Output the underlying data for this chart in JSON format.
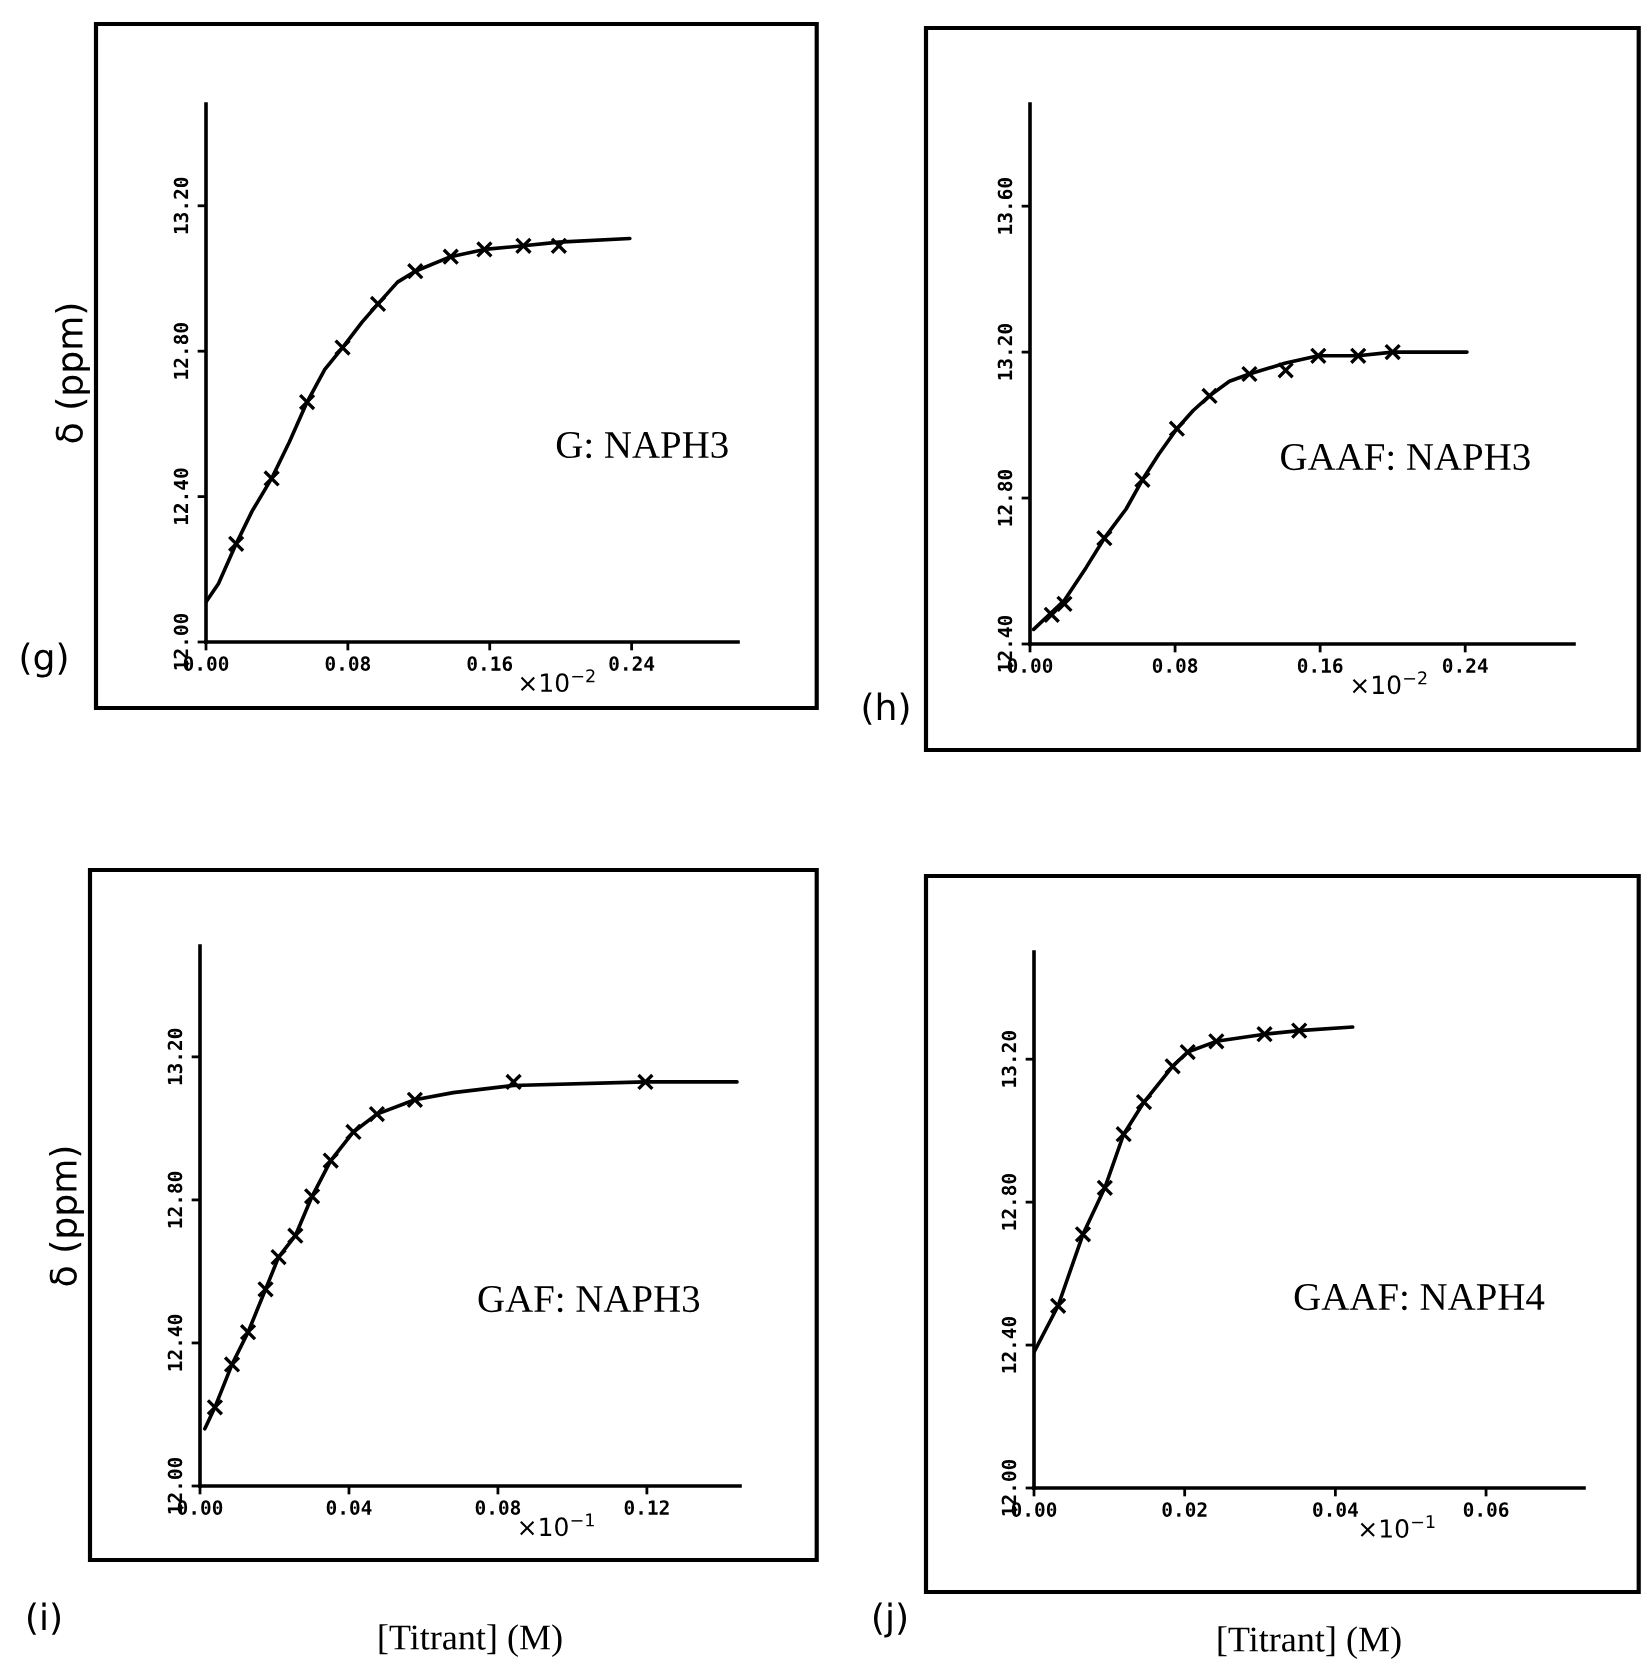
{
  "chart_data": [
    {
      "type": "line",
      "ylabel": "δ (ppm)",
      "annotations": [
        "G: NAPH3",
        "×10$^{−2}$",
        "(g)"
      ],
      "xlim": [
        0,
        0.3
      ],
      "ylim": [
        12.0,
        13.48
      ],
      "xticks": [
        {
          "value": 0,
          "label": "0.00"
        },
        {
          "value": 0.08,
          "label": "0.08"
        },
        {
          "value": 0.16,
          "label": "0.16"
        },
        {
          "value": 0.24,
          "label": "0.24"
        }
      ],
      "yticks": [
        {
          "value": 12.0,
          "label": "12.00"
        },
        {
          "value": 12.4,
          "label": "12.40"
        },
        {
          "value": 12.8,
          "label": "12.80"
        },
        {
          "value": 13.2,
          "label": "13.20"
        }
      ],
      "series": [
        {
          "type": "scatter",
          "marker": "cross",
          "color": "#000000",
          "x": [
            0.017,
            0.037,
            0.057,
            0.077,
            0.097,
            0.118,
            0.138,
            0.157,
            0.179,
            0.199
          ],
          "values": [
            12.27,
            12.45,
            12.66,
            12.81,
            12.93,
            13.02,
            13.06,
            13.08,
            13.09,
            13.09
          ]
        },
        {
          "line_style": "solid",
          "color": "#000000",
          "x": [
            0,
            0.007,
            0.017,
            0.026,
            0.037,
            0.047,
            0.057,
            0.067,
            0.077,
            0.088,
            0.097,
            0.108,
            0.118,
            0.138,
            0.157,
            0.179,
            0.199,
            0.239
          ],
          "values": [
            12.11,
            12.16,
            12.27,
            12.36,
            12.45,
            12.55,
            12.66,
            12.75,
            12.81,
            12.88,
            12.93,
            12.99,
            13.02,
            13.06,
            13.08,
            13.09,
            13.1,
            13.11
          ]
        }
      ]
    },
    {
      "type": "line",
      "annotations": [
        "GAAF: NAPH3",
        "×10$^{−2}$",
        "(h)"
      ],
      "xlim": [
        0,
        0.3
      ],
      "ylim": [
        12.4,
        13.88
      ],
      "xticks": [
        {
          "value": 0,
          "label": "0.00"
        },
        {
          "value": 0.08,
          "label": "0.08"
        },
        {
          "value": 0.16,
          "label": "0.16"
        },
        {
          "value": 0.24,
          "label": "0.24"
        }
      ],
      "yticks": [
        {
          "value": 12.4,
          "label": "12.40"
        },
        {
          "value": 12.8,
          "label": "12.80"
        },
        {
          "value": 13.2,
          "label": "13.20"
        },
        {
          "value": 13.6,
          "label": "13.60"
        }
      ],
      "series": [
        {
          "type": "scatter",
          "marker": "cross",
          "color": "#000000",
          "x": [
            0.012,
            0.019,
            0.041,
            0.062,
            0.081,
            0.099,
            0.121,
            0.141,
            0.159,
            0.181,
            0.2
          ],
          "values": [
            12.48,
            12.51,
            12.69,
            12.85,
            12.99,
            13.08,
            13.14,
            13.15,
            13.19,
            13.19,
            13.2
          ]
        },
        {
          "line_style": "solid",
          "color": "#000000",
          "x": [
            0.002,
            0.019,
            0.031,
            0.041,
            0.053,
            0.062,
            0.071,
            0.081,
            0.09,
            0.099,
            0.11,
            0.121,
            0.141,
            0.159,
            0.181,
            0.2,
            0.241
          ],
          "values": [
            12.44,
            12.52,
            12.61,
            12.69,
            12.77,
            12.85,
            12.92,
            12.99,
            13.04,
            13.08,
            13.12,
            13.14,
            13.17,
            13.19,
            13.19,
            13.2,
            13.2
          ]
        }
      ]
    },
    {
      "type": "line",
      "ylabel": "δ (ppm)",
      "xlabel": "[Titrant] (M)",
      "annotations": [
        "GAF: NAPH3",
        "×10$^{−1}$",
        "(i)"
      ],
      "xlim": [
        0,
        0.145
      ],
      "ylim": [
        12.0,
        13.51
      ],
      "xticks": [
        {
          "value": 0,
          "label": "0.00"
        },
        {
          "value": 0.04,
          "label": "0.04"
        },
        {
          "value": 0.08,
          "label": "0.08"
        },
        {
          "value": 0.12,
          "label": "0.12"
        }
      ],
      "yticks": [
        {
          "value": 12.0,
          "label": "12.00"
        },
        {
          "value": 12.4,
          "label": "12.40"
        },
        {
          "value": 12.8,
          "label": "12.80"
        },
        {
          "value": 13.2,
          "label": "13.20"
        }
      ],
      "series": [
        {
          "type": "scatter",
          "marker": "cross",
          "color": "#000000",
          "x": [
            0.004,
            0.0086,
            0.0129,
            0.0176,
            0.0211,
            0.0256,
            0.0301,
            0.0351,
            0.0412,
            0.0475,
            0.0577,
            0.0842,
            0.1196
          ],
          "values": [
            12.22,
            12.34,
            12.43,
            12.55,
            12.64,
            12.7,
            12.81,
            12.91,
            12.99,
            13.04,
            13.08,
            13.13,
            13.13
          ]
        },
        {
          "line_style": "solid",
          "color": "#000000",
          "x": [
            0.0013,
            0.004,
            0.0086,
            0.0129,
            0.0176,
            0.0211,
            0.0256,
            0.0301,
            0.0351,
            0.0412,
            0.0475,
            0.0577,
            0.068,
            0.0842,
            0.1196,
            0.1442
          ],
          "values": [
            12.16,
            12.22,
            12.34,
            12.43,
            12.55,
            12.64,
            12.7,
            12.81,
            12.91,
            12.99,
            13.04,
            13.08,
            13.1,
            13.12,
            13.13,
            13.13
          ]
        }
      ]
    },
    {
      "type": "line",
      "xlabel": "[Titrant] (M)",
      "annotations": [
        "GAAF: NAPH4",
        "×10$^{−1}$",
        "(j)"
      ],
      "xlim": [
        0,
        0.073
      ],
      "ylim": [
        12.0,
        13.5
      ],
      "xticks": [
        {
          "value": 0,
          "label": "0.00"
        },
        {
          "value": 0.02,
          "label": "0.02"
        },
        {
          "value": 0.04,
          "label": "0.04"
        },
        {
          "value": 0.06,
          "label": "0.06"
        }
      ],
      "yticks": [
        {
          "value": 12.0,
          "label": "12.00"
        },
        {
          "value": 12.4,
          "label": "12.40"
        },
        {
          "value": 12.8,
          "label": "12.80"
        },
        {
          "value": 13.2,
          "label": "13.20"
        }
      ],
      "series": [
        {
          "type": "scatter",
          "marker": "cross",
          "color": "#000000",
          "x": [
            0.0032,
            0.0065,
            0.0094,
            0.0119,
            0.0146,
            0.0184,
            0.0204,
            0.0242,
            0.0306,
            0.0352
          ],
          "values": [
            12.51,
            12.71,
            12.84,
            12.99,
            13.08,
            13.18,
            13.22,
            13.25,
            13.27,
            13.28
          ]
        },
        {
          "line_style": "solid",
          "color": "#000000",
          "x": [
            0,
            0.0032,
            0.0065,
            0.0094,
            0.0119,
            0.0146,
            0.0184,
            0.0204,
            0.0242,
            0.0306,
            0.0352,
            0.0423
          ],
          "values": [
            12.38,
            12.51,
            12.71,
            12.84,
            12.99,
            13.08,
            13.18,
            13.22,
            13.25,
            13.27,
            13.28,
            13.29
          ]
        }
      ]
    }
  ]
}
